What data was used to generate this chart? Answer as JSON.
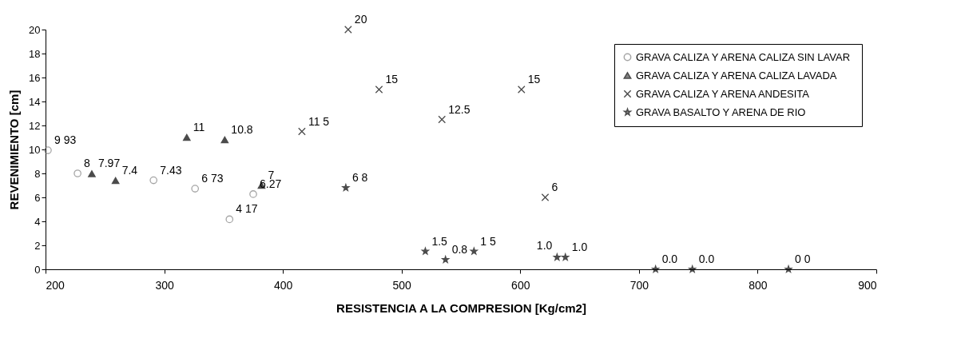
{
  "chart_data": {
    "type": "scatter",
    "xlabel": "RESISTENCIA A LA COMPRESION [Kg/cm2]",
    "ylabel": "REVENIMIENTO [cm]",
    "xlim": [
      200,
      900
    ],
    "xticks": [
      200,
      300,
      400,
      500,
      600,
      700,
      800,
      900
    ],
    "ylim": [
      0,
      20
    ],
    "yticks": [
      0,
      2,
      4,
      6,
      8,
      10,
      12,
      14,
      16,
      18,
      20
    ],
    "grid": false,
    "legend": "top right",
    "series": [
      {
        "name": "GRAVA CALIZA Y ARENA CALIZA SIN LAVAR",
        "color": "#808080",
        "marker": "circle",
        "x": [
          202,
          227,
          291,
          326,
          375,
          355
        ],
        "values": [
          9.93,
          8,
          7.43,
          6.73,
          6.27,
          4.17
        ],
        "value_labels": [
          "9 93",
          "8",
          "7.43",
          "6 73",
          "6.27",
          "4 17"
        ]
      },
      {
        "name": "GRAVA CALIZA Y ARENA CALIZA LAVADA",
        "color": "#000000",
        "marker": "triangle",
        "x": [
          239,
          259,
          319,
          351,
          382
        ],
        "values": [
          7.97,
          7.4,
          11,
          10.8,
          7
        ],
        "value_labels": [
          "7.97",
          "7.4",
          "11",
          "10.8",
          "7"
        ]
      },
      {
        "name": "GRAVA CALIZA Y ARENA ANDESITA",
        "color": "#000000",
        "marker": "cross",
        "x": [
          416,
          455,
          481,
          534,
          601,
          621
        ],
        "values": [
          11.5,
          20,
          15,
          12.5,
          15,
          6
        ],
        "value_labels": [
          "11 5",
          "20",
          "15",
          "12.5",
          "15",
          "6"
        ]
      },
      {
        "name": "GRAVA BASALTO Y ARENA DE RIO",
        "color": "#000000",
        "marker": "star",
        "x": [
          453,
          520,
          537,
          561,
          631,
          638,
          714,
          745,
          826
        ],
        "values": [
          6.8,
          1.5,
          0.8,
          1.5,
          1.0,
          1.0,
          0,
          0,
          0
        ],
        "value_labels": [
          "6 8",
          "1.5",
          "0.8",
          "1 5",
          "1.0",
          "1.0",
          "0.0",
          "0.0",
          "0 0"
        ]
      }
    ]
  }
}
